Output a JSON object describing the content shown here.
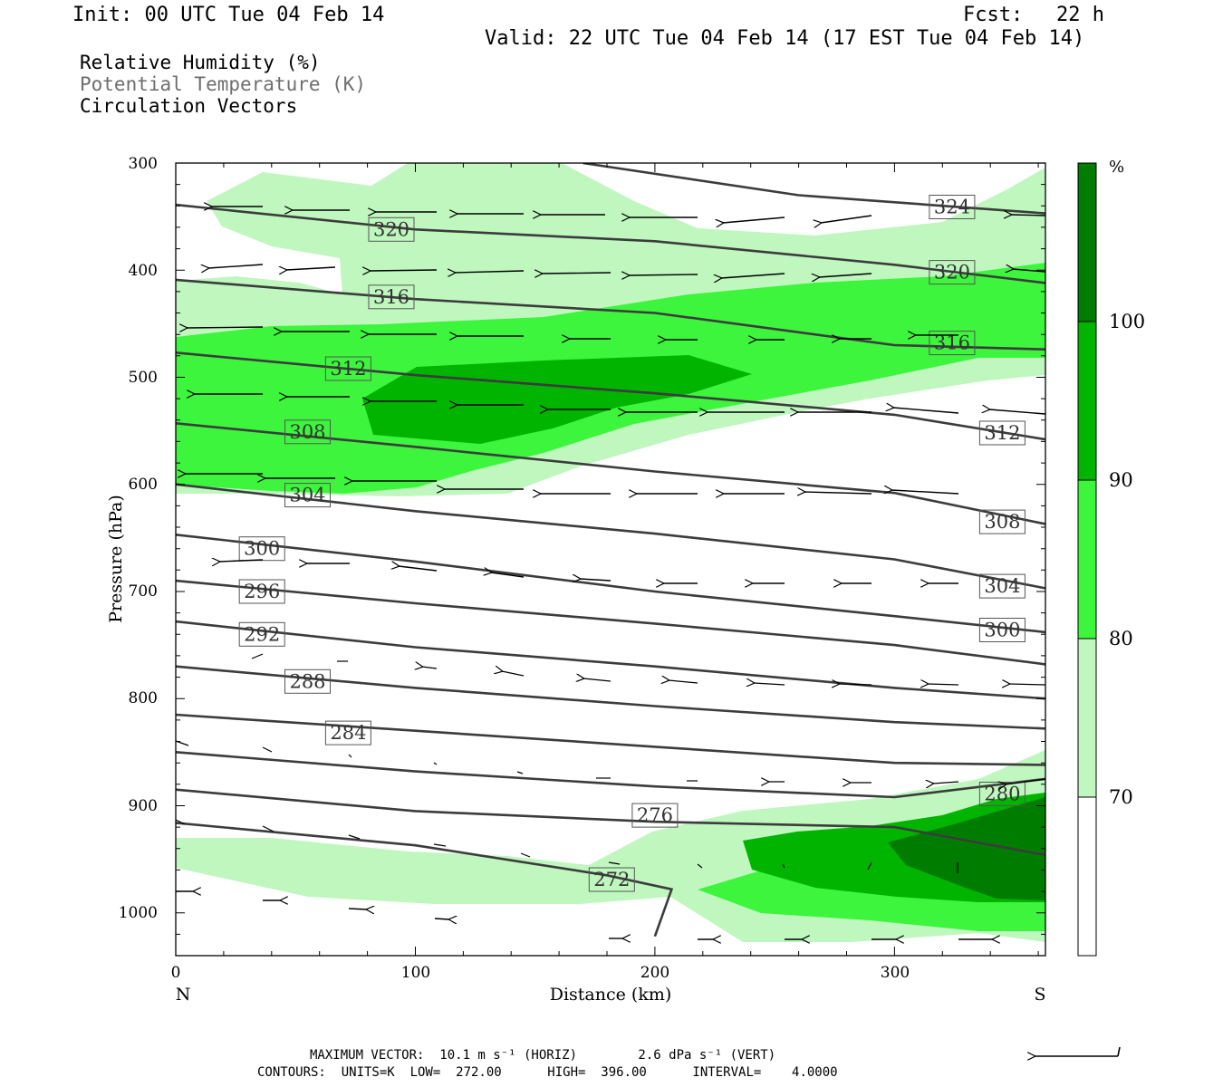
{
  "header": {
    "init": "Init: 00 UTC Tue 04 Feb 14",
    "fcst_label": "Fcst:",
    "fcst_value": "22 h",
    "valid": "Valid: 22 UTC Tue 04 Feb 14 (17 EST Tue 04 Feb 14)"
  },
  "legend": {
    "line1": "Relative Humidity (%)",
    "line2": "Potential Temperature (K)",
    "line3": "Circulation Vectors"
  },
  "footer": {
    "max_vector": "MAXIMUM VECTOR:  10.1 m s⁻¹ (HORIZ)        2.6 dPa s⁻¹ (VERT)",
    "contours": "CONTOURS:  UNITS=K  LOW=  272.00      HIGH=  396.00      INTERVAL=    4.0000"
  },
  "colors": {
    "rh_70": "#bff7bf",
    "rh_80": "#3df53d",
    "rh_90": "#00b400",
    "rh_100": "#007d00",
    "contour": "#3c3c3c"
  },
  "chart_data": {
    "type": "cross-section",
    "xlabel": "Distance (km)",
    "ylabel": "Pressure (hPa)",
    "xlim": [
      0,
      363
    ],
    "ylim": [
      300,
      1040
    ],
    "x_ticks": [
      "0",
      "100",
      "200",
      "300"
    ],
    "y_ticks": [
      "300",
      "400",
      "500",
      "600",
      "700",
      "800",
      "900",
      "1000"
    ],
    "x_end_labels": {
      "left": "N",
      "right": "S"
    },
    "colorbar": {
      "unit": "%",
      "levels": [
        "70",
        "80",
        "90",
        "100"
      ]
    },
    "theta_contours": [
      {
        "level": "324",
        "points": [
          [
            170,
            300
          ],
          [
            260,
            330
          ],
          [
            363,
            347
          ]
        ],
        "labels": [
          [
            324,
            341
          ]
        ]
      },
      {
        "level": "320",
        "points": [
          [
            0,
            339
          ],
          [
            100,
            362
          ],
          [
            200,
            373
          ],
          [
            300,
            395
          ],
          [
            363,
            412
          ]
        ],
        "labels": [
          [
            90,
            362
          ],
          [
            324,
            402
          ]
        ]
      },
      {
        "level": "316",
        "points": [
          [
            0,
            409
          ],
          [
            100,
            427
          ],
          [
            200,
            440
          ],
          [
            300,
            470
          ],
          [
            363,
            474
          ]
        ],
        "labels": [
          [
            90,
            425
          ],
          [
            324,
            468
          ]
        ]
      },
      {
        "level": "312",
        "points": [
          [
            0,
            477
          ],
          [
            100,
            498
          ],
          [
            200,
            515
          ],
          [
            300,
            535
          ],
          [
            363,
            558
          ]
        ],
        "labels": [
          [
            72,
            492
          ],
          [
            345,
            552
          ]
        ]
      },
      {
        "level": "308",
        "points": [
          [
            0,
            543
          ],
          [
            100,
            565
          ],
          [
            200,
            588
          ],
          [
            300,
            608
          ],
          [
            363,
            637
          ]
        ],
        "labels": [
          [
            55,
            551
          ],
          [
            345,
            635
          ]
        ]
      },
      {
        "level": "304",
        "points": [
          [
            0,
            600
          ],
          [
            100,
            625
          ],
          [
            200,
            646
          ],
          [
            300,
            670
          ],
          [
            363,
            697
          ]
        ],
        "labels": [
          [
            55,
            610
          ],
          [
            345,
            695
          ]
        ]
      },
      {
        "level": "300",
        "points": [
          [
            0,
            647
          ],
          [
            100,
            672
          ],
          [
            200,
            700
          ],
          [
            300,
            723
          ],
          [
            363,
            738
          ]
        ],
        "labels": [
          [
            36,
            660
          ],
          [
            345,
            736
          ]
        ]
      },
      {
        "level": "296",
        "points": [
          [
            0,
            690
          ],
          [
            100,
            711
          ],
          [
            200,
            730
          ],
          [
            300,
            750
          ],
          [
            363,
            768
          ]
        ],
        "labels": [
          [
            36,
            700
          ]
        ]
      },
      {
        "level": "292",
        "points": [
          [
            0,
            728
          ],
          [
            100,
            752
          ],
          [
            200,
            770
          ],
          [
            300,
            790
          ],
          [
            363,
            800
          ]
        ],
        "labels": [
          [
            36,
            740
          ]
        ]
      },
      {
        "level": "288",
        "points": [
          [
            0,
            770
          ],
          [
            100,
            790
          ],
          [
            200,
            807
          ],
          [
            300,
            822
          ],
          [
            363,
            828
          ]
        ],
        "labels": [
          [
            55,
            784
          ]
        ]
      },
      {
        "level": "284",
        "points": [
          [
            0,
            815
          ],
          [
            100,
            830
          ],
          [
            200,
            845
          ],
          [
            300,
            860
          ],
          [
            363,
            862
          ]
        ],
        "labels": [
          [
            72,
            832
          ]
        ]
      },
      {
        "level": "280",
        "points": [
          [
            0,
            850
          ],
          [
            100,
            868
          ],
          [
            200,
            882
          ],
          [
            300,
            892
          ],
          [
            363,
            875
          ]
        ],
        "labels": [
          [
            345,
            889
          ]
        ]
      },
      {
        "level": "276",
        "points": [
          [
            0,
            885
          ],
          [
            100,
            905
          ],
          [
            200,
            915
          ],
          [
            300,
            920
          ],
          [
            363,
            946
          ]
        ],
        "labels": [
          [
            200,
            909
          ]
        ]
      },
      {
        "level": "272",
        "points": [
          [
            0,
            916
          ],
          [
            100,
            937
          ],
          [
            180,
            965
          ],
          [
            207,
            978
          ],
          [
            200,
            1022
          ]
        ],
        "labels": [
          [
            182,
            969
          ]
        ]
      }
    ]
  }
}
